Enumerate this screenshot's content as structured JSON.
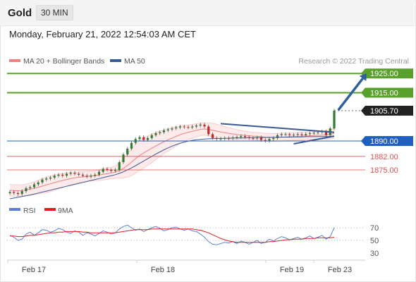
{
  "header": {
    "symbol": "Gold",
    "timeframe": "30 MIN"
  },
  "timestamp": "Monday, February 21, 2022 12:54:03 AM CET",
  "colors": {
    "bollinger": "#f08080",
    "ma50": "#3a5a94",
    "resistance": "#5aa02c",
    "support": "#1f5fbf",
    "minor_level": "#e05050",
    "current": "#222222",
    "rsi": "#5b7fd6",
    "rsi_ma": "#e02020",
    "arrow": "#2f5fa0"
  },
  "chart_data": [
    {
      "type": "line",
      "xlabel": "",
      "ylabel": "",
      "legend": [
        {
          "name": "MA 20 + Bollinger Bands",
          "color": "#f08080"
        },
        {
          "name": "MA 50",
          "color": "#3a5a94"
        }
      ],
      "legend_position": "top-left",
      "credit": "Research © 2022 Trading Central",
      "x_ticks": [
        "Feb 17",
        "Feb 18",
        "Feb 19",
        "Feb 23"
      ],
      "ylim": [
        1860,
        1928
      ],
      "levels": [
        {
          "label": "1925.00",
          "value": 1925.0,
          "kind": "resistance"
        },
        {
          "label": "1915.00",
          "value": 1915.0,
          "kind": "resistance"
        },
        {
          "label": "1905.70",
          "value": 1905.7,
          "kind": "current"
        },
        {
          "label": "1890.00",
          "value": 1890.0,
          "kind": "support"
        },
        {
          "label": "1882.00",
          "value": 1882.0,
          "kind": "minor"
        },
        {
          "label": "1875.00",
          "value": 1875.0,
          "kind": "minor"
        }
      ],
      "price_close": [
        1863.5,
        1863.0,
        1862.5,
        1864.0,
        1865.5,
        1866.0,
        1867.5,
        1868.5,
        1870.0,
        1870.5,
        1871.0,
        1872.0,
        1872.5,
        1872.0,
        1873.0,
        1873.5,
        1873.0,
        1872.5,
        1872.0,
        1871.5,
        1872.0,
        1872.5,
        1874.0,
        1875.5,
        1875.0,
        1874.5,
        1875.0,
        1879.0,
        1883.0,
        1886.0,
        1889.0,
        1891.0,
        1892.0,
        1890.5,
        1891.5,
        1893.0,
        1894.0,
        1894.5,
        1895.5,
        1896.0,
        1896.5,
        1897.0,
        1897.5,
        1897.2,
        1897.0,
        1897.5,
        1898.0,
        1898.5,
        1897.5,
        1893.5,
        1891.5,
        1891.0,
        1891.2,
        1891.5,
        1891.3,
        1891.8,
        1892.0,
        1892.5,
        1892.0,
        1891.5,
        1891.3,
        1891.8,
        1890.5,
        1890.0,
        1891.0,
        1891.5,
        1893.0,
        1893.5,
        1893.5,
        1893.0,
        1893.2,
        1893.5,
        1893.0,
        1893.6,
        1894.0,
        1894.2,
        1894.5,
        1895.0,
        1893.0,
        1896.5,
        1905.7
      ],
      "ma20": [
        1864.5,
        1864.3,
        1864.2,
        1864.3,
        1864.6,
        1865.0,
        1865.5,
        1866.0,
        1866.6,
        1867.2,
        1867.8,
        1868.4,
        1869.0,
        1869.5,
        1870.0,
        1870.5,
        1870.9,
        1871.2,
        1871.4,
        1871.6,
        1871.8,
        1872.0,
        1872.3,
        1872.7,
        1873.1,
        1873.4,
        1873.8,
        1874.6,
        1875.8,
        1877.3,
        1879.0,
        1880.8,
        1882.5,
        1883.8,
        1885.0,
        1886.2,
        1887.4,
        1888.5,
        1889.6,
        1890.6,
        1891.5,
        1892.4,
        1893.2,
        1893.9,
        1894.5,
        1895.0,
        1895.5,
        1896.0,
        1896.2,
        1896.0,
        1895.6,
        1895.1,
        1894.7,
        1894.3,
        1893.9,
        1893.6,
        1893.3,
        1893.1,
        1892.9,
        1892.7,
        1892.5,
        1892.4,
        1892.2,
        1892.0,
        1891.9,
        1891.8,
        1891.9,
        1892.0,
        1892.1,
        1892.2,
        1892.3,
        1892.4,
        1892.5,
        1892.6,
        1892.7,
        1892.8,
        1892.9,
        1893.0,
        1893.1,
        1893.4,
        1894.0
      ],
      "bb_width": [
        3.0,
        3.0,
        3.0,
        3.0,
        3.0,
        3.2,
        3.4,
        3.6,
        3.8,
        4.0,
        4.0,
        4.0,
        3.8,
        3.6,
        3.4,
        3.2,
        3.0,
        2.8,
        2.6,
        2.6,
        2.6,
        2.6,
        2.8,
        3.0,
        3.0,
        3.0,
        3.2,
        4.0,
        5.0,
        6.0,
        7.0,
        7.5,
        7.8,
        7.8,
        7.6,
        7.4,
        7.0,
        6.6,
        6.2,
        5.8,
        5.4,
        5.0,
        4.6,
        4.2,
        3.8,
        3.6,
        3.4,
        3.2,
        3.2,
        3.4,
        3.6,
        3.6,
        3.4,
        3.2,
        3.0,
        2.8,
        2.6,
        2.4,
        2.2,
        2.1,
        2.0,
        2.0,
        2.0,
        2.0,
        2.0,
        2.0,
        2.0,
        2.0,
        2.0,
        2.0,
        2.0,
        2.0,
        2.0,
        2.0,
        2.0,
        2.0,
        2.0,
        2.1,
        2.2,
        2.4,
        2.6
      ],
      "ma50": [
        1860.0,
        1860.4,
        1860.8,
        1861.2,
        1861.6,
        1862.0,
        1862.5,
        1863.0,
        1863.5,
        1864.0,
        1864.5,
        1865.0,
        1865.5,
        1866.0,
        1866.5,
        1867.0,
        1867.5,
        1868.0,
        1868.5,
        1869.0,
        1869.5,
        1870.0,
        1870.5,
        1871.0,
        1871.5,
        1872.0,
        1872.5,
        1873.2,
        1874.0,
        1875.0,
        1876.0,
        1877.2,
        1878.4,
        1879.6,
        1880.8,
        1882.0,
        1883.2,
        1884.3,
        1885.4,
        1886.4,
        1887.3,
        1888.1,
        1888.8,
        1889.4,
        1889.9,
        1890.3,
        1890.6,
        1890.8,
        1891.0,
        1891.1,
        1891.2,
        1891.3,
        1891.3,
        1891.4,
        1891.4,
        1891.5,
        1891.5,
        1891.6,
        1891.6,
        1891.7,
        1891.7,
        1891.8,
        1891.8,
        1891.8,
        1891.9,
        1891.9,
        1891.9,
        1892.0,
        1892.0,
        1892.0,
        1892.1,
        1892.1,
        1892.1,
        1892.2,
        1892.2,
        1892.2,
        1892.3,
        1892.3,
        1892.3,
        1892.4,
        1892.5
      ],
      "trendlines": [
        {
          "from": {
            "bar": 52,
            "price": 1899.0
          },
          "to": {
            "bar": 80,
            "price": 1894.5
          }
        },
        {
          "from": {
            "bar": 70,
            "price": 1888.5
          },
          "to": {
            "bar": 80,
            "price": 1892.5
          }
        }
      ],
      "arrow": {
        "from": {
          "bar": 81,
          "price": 1906.0
        },
        "to": {
          "bar": 88,
          "price": 1925.0
        }
      }
    },
    {
      "type": "line",
      "legend": [
        {
          "name": "RSI",
          "color": "#5b7fd6"
        },
        {
          "name": "9MA",
          "color": "#e02020"
        }
      ],
      "legend_position": "top-left",
      "ylim": [
        20,
        80
      ],
      "y_ticks": [
        "70",
        "50",
        "30"
      ],
      "rsi": [
        58,
        55,
        50,
        52,
        60,
        63,
        58,
        62,
        67,
        66,
        63,
        65,
        69,
        67,
        63,
        61,
        65,
        63,
        58,
        62,
        60,
        57,
        61,
        65,
        63,
        60,
        62,
        68,
        72,
        74,
        70,
        66,
        68,
        64,
        67,
        70,
        72,
        69,
        65,
        67,
        70,
        71,
        68,
        66,
        68,
        65,
        64,
        60,
        55,
        48,
        44,
        43,
        45,
        47,
        46,
        48,
        45,
        49,
        47,
        44,
        47,
        50,
        45,
        47,
        52,
        49,
        53,
        56,
        54,
        51,
        53,
        55,
        52,
        54,
        57,
        53,
        55,
        58,
        52,
        56,
        70
      ],
      "rsi_ma": [
        57,
        57,
        56,
        56,
        57,
        58,
        58,
        59,
        60,
        61,
        62,
        62,
        63,
        63,
        64,
        64,
        64,
        64,
        63,
        63,
        62,
        62,
        62,
        62,
        62,
        62,
        62,
        63,
        64,
        65,
        66,
        67,
        67,
        67,
        67,
        68,
        68,
        68,
        68,
        68,
        68,
        68,
        68,
        68,
        68,
        68,
        67,
        66,
        64,
        62,
        59,
        56,
        53,
        51,
        49,
        48,
        47,
        47,
        47,
        47,
        47,
        47,
        47,
        47,
        48,
        48,
        49,
        50,
        51,
        51,
        52,
        52,
        52,
        53,
        53,
        53,
        54,
        54,
        54,
        54,
        55
      ]
    }
  ]
}
